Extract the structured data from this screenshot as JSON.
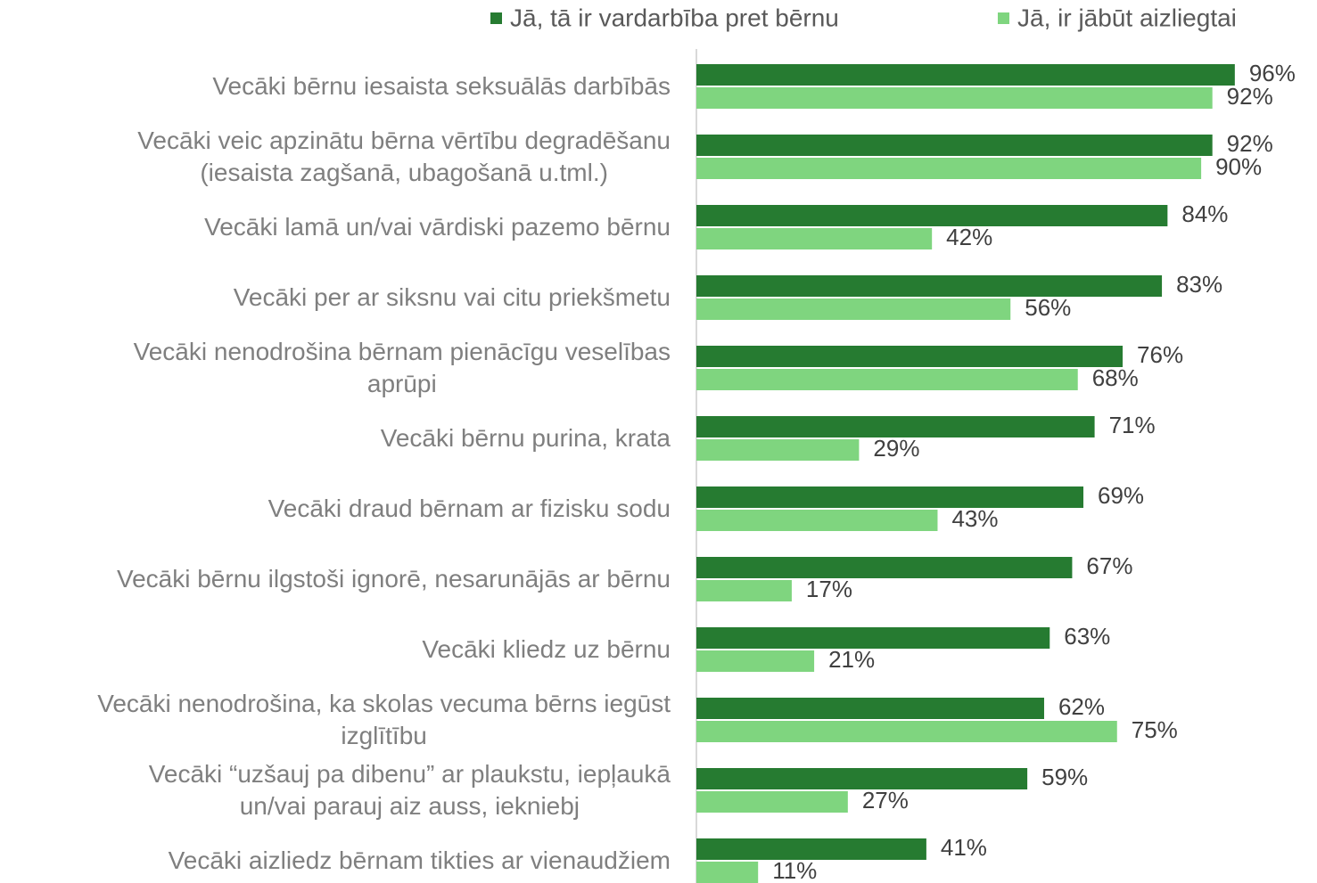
{
  "chart_data": {
    "type": "bar",
    "orientation": "horizontal",
    "categories": [
      "Vecāki bērnu iesaista seksuālās darbībās",
      "Vecāki veic apzinātu bērna vērtību degradēšanu\n(iesaista zagšanā, ubagošanā u.tml.)",
      "Vecāki lamā un/vai vārdiski pazemo bērnu",
      "Vecāki per ar siksnu vai citu priekšmetu",
      "Vecāki nenodrošina bērnam pienācīgu veselības\naprūpi",
      "Vecāki bērnu purina, krata",
      "Vecāki draud bērnam ar fizisku sodu",
      "Vecāki bērnu ilgstoši ignorē, nesarunājās ar bērnu",
      "Vecāki kliedz uz bērnu",
      "Vecāki nenodrošina, ka skolas vecuma bērns iegūst\nizglītību",
      "Vecāki “uzšauj pa dibenu” ar plaukstu, iepļaukā\nun/vai parauj aiz auss, iekniebj",
      "Vecāki aizliedz bērnam tikties ar vienaudžiem"
    ],
    "series": [
      {
        "name": "Jā, tā ir vardarbība pret bērnu",
        "color": "#267b31",
        "values": [
          96,
          92,
          84,
          83,
          76,
          71,
          69,
          67,
          63,
          62,
          59,
          41
        ],
        "value_labels": [
          "96%",
          "92%",
          "84%",
          "83%",
          "76%",
          "71%",
          "69%",
          "67%",
          "63%",
          "62%",
          "59%",
          "41%"
        ]
      },
      {
        "name": "Jā, ir jābūt aizliegtai",
        "color": "#7fd57f",
        "values": [
          92,
          90,
          42,
          56,
          68,
          29,
          43,
          17,
          21,
          75,
          27,
          11
        ],
        "value_labels": [
          "92%",
          "90%",
          "42%",
          "56%",
          "68%",
          "29%",
          "43%",
          "17%",
          "21%",
          "75%",
          "27%",
          "11%"
        ]
      }
    ],
    "xlim": [
      0,
      100
    ],
    "legend": "top"
  }
}
